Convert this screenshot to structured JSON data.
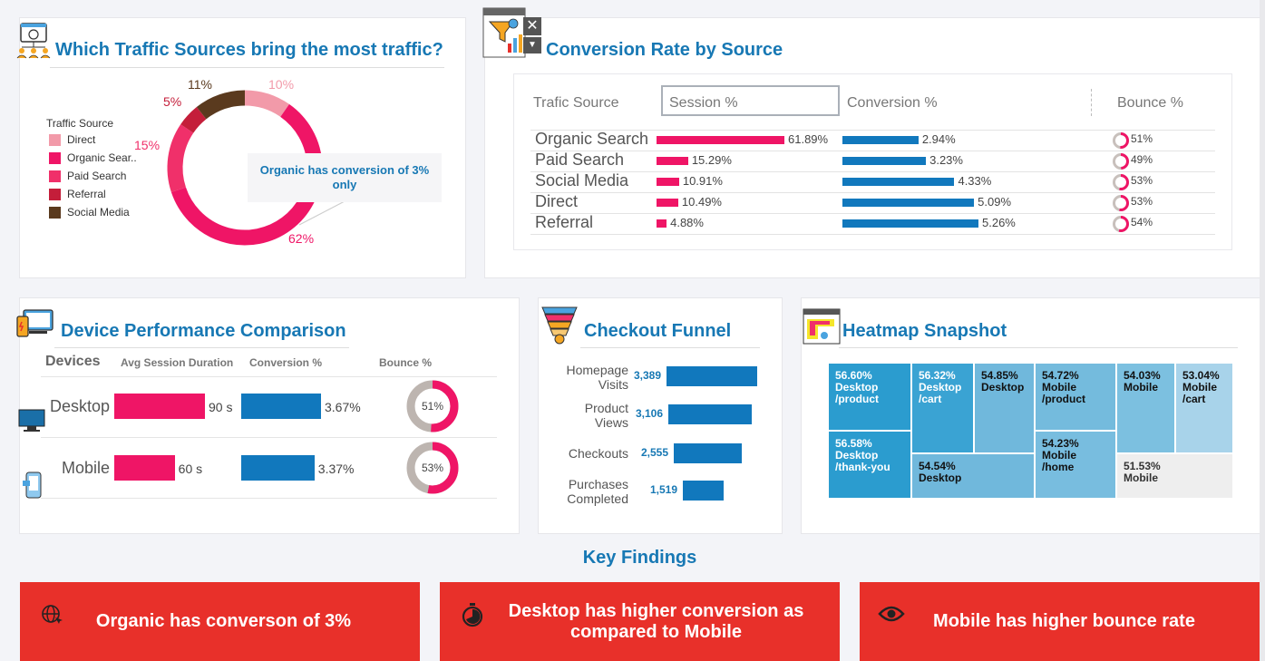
{
  "colors": {
    "direct": "#f29aa9",
    "organic": "#ef1566",
    "paid": "#f0306a",
    "referral": "#c41e3a",
    "social": "#5a3a1e",
    "blue": "#1178bd",
    "title": "#1778b4",
    "red": "#e8302a"
  },
  "traffic": {
    "title": "Which Traffic Sources bring the most traffic?",
    "legend_title": "Traffic Source",
    "legend": [
      "Direct",
      "Organic Sear..",
      "Paid Search",
      "Referral",
      "Social Media"
    ],
    "callout": "Organic has conversion of 3% only",
    "labels": {
      "social": "11%",
      "direct": "10%",
      "referral": "5%",
      "paid": "15%",
      "organic": "62%"
    }
  },
  "chart_data": [
    {
      "type": "pie",
      "title": "Which Traffic Sources bring the most traffic?",
      "legend_title": "Traffic Source",
      "categories": [
        "Direct",
        "Organic Search",
        "Paid Search",
        "Referral",
        "Social Media"
      ],
      "values": [
        10,
        62,
        15,
        5,
        11
      ]
    },
    {
      "type": "bar",
      "title": "Conversion Rate by Source",
      "categories": [
        "Organic Search",
        "Paid Search",
        "Social Media",
        "Direct",
        "Referral"
      ],
      "series": [
        {
          "name": "Session %",
          "values": [
            61.89,
            15.29,
            10.91,
            10.49,
            4.88
          ]
        },
        {
          "name": "Conversion %",
          "values": [
            2.94,
            3.23,
            4.33,
            5.09,
            5.26
          ]
        },
        {
          "name": "Bounce %",
          "values": [
            51,
            49,
            53,
            53,
            54
          ]
        }
      ]
    },
    {
      "type": "bar",
      "title": "Device Performance Comparison",
      "categories": [
        "Desktop",
        "Mobile"
      ],
      "series": [
        {
          "name": "Avg Session Duration",
          "values": [
            90,
            60
          ]
        },
        {
          "name": "Conversion %",
          "values": [
            3.67,
            3.37
          ]
        },
        {
          "name": "Bounce %",
          "values": [
            51,
            53
          ]
        }
      ]
    },
    {
      "type": "bar",
      "title": "Checkout Funnel",
      "categories": [
        "Homepage Visits",
        "Product Views",
        "Checkouts",
        "Purchases Completed"
      ],
      "values": [
        3389,
        3106,
        2555,
        1519
      ]
    },
    {
      "type": "heatmap",
      "title": "Heatmap Snapshot",
      "categories": [
        "Desktop /product",
        "Desktop /thank-you",
        "Desktop /cart",
        "Desktop",
        "Desktop",
        "Mobile /product",
        "Mobile /home",
        "Mobile",
        "Mobile",
        "Mobile /cart"
      ],
      "values": [
        56.6,
        56.58,
        56.32,
        54.54,
        54.85,
        54.72,
        54.23,
        54.03,
        51.53,
        53.04
      ]
    }
  ],
  "conversion": {
    "title": "Conversion Rate by Source",
    "headers": [
      "Trafic Source",
      "Session %",
      "Conversion %",
      "Bounce %"
    ],
    "rows": [
      {
        "source": "Organic Search",
        "session": 61.89,
        "session_label": "61.89%",
        "conv": 2.94,
        "conv_label": "2.94%",
        "bounce": 51,
        "bounce_label": "51%"
      },
      {
        "source": "Paid Search",
        "session": 15.29,
        "session_label": "15.29%",
        "conv": 3.23,
        "conv_label": "3.23%",
        "bounce": 49,
        "bounce_label": "49%"
      },
      {
        "source": "Social Media",
        "session": 10.91,
        "session_label": "10.91%",
        "conv": 4.33,
        "conv_label": "4.33%",
        "bounce": 53,
        "bounce_label": "53%"
      },
      {
        "source": "Direct",
        "session": 10.49,
        "session_label": "10.49%",
        "conv": 5.09,
        "conv_label": "5.09%",
        "bounce": 53,
        "bounce_label": "53%"
      },
      {
        "source": "Referral",
        "session": 4.88,
        "session_label": "4.88%",
        "conv": 5.26,
        "conv_label": "5.26%",
        "bounce": 54,
        "bounce_label": "54%"
      }
    ]
  },
  "device": {
    "title": "Device Performance Comparison",
    "headers": [
      "Devices",
      "Avg Session Duration",
      "Conversion %",
      "Bounce %"
    ],
    "rows": [
      {
        "device": "Desktop",
        "dur": 90,
        "dur_label": "90 s",
        "conv": 3.67,
        "conv_label": "3.67%",
        "bounce": 51,
        "bounce_label": "51%"
      },
      {
        "device": "Mobile",
        "dur": 60,
        "dur_label": "60 s",
        "conv": 3.37,
        "conv_label": "3.37%",
        "bounce": 53,
        "bounce_label": "53%"
      }
    ]
  },
  "funnel": {
    "title": "Checkout Funnel",
    "stages": [
      {
        "label": "Homepage Visits",
        "lines": [
          "Homepage",
          "Visits"
        ],
        "value": 3389,
        "value_label": "3,389"
      },
      {
        "label": "Product Views",
        "lines": [
          "Product",
          "Views"
        ],
        "value": 3106,
        "value_label": "3,106"
      },
      {
        "label": "Checkouts",
        "lines": [
          "Checkouts"
        ],
        "value": 2555,
        "value_label": "2,555"
      },
      {
        "label": "Purchases Completed",
        "lines": [
          "Purchases",
          "Completed"
        ],
        "value": 1519,
        "value_label": "1,519"
      }
    ]
  },
  "heatmap": {
    "title": "Heatmap Snapshot",
    "cells": [
      {
        "pct": "56.60%",
        "l1": "Desktop",
        "l2": "/product"
      },
      {
        "pct": "56.58%",
        "l1": "Desktop",
        "l2": "/thank-you"
      },
      {
        "pct": "56.32%",
        "l1": "Desktop",
        "l2": "/cart"
      },
      {
        "pct": "54.54%",
        "l1": "Desktop",
        "l2": ""
      },
      {
        "pct": "54.85%",
        "l1": "Desktop",
        "l2": ""
      },
      {
        "pct": "54.72%",
        "l1": "Mobile",
        "l2": "/product"
      },
      {
        "pct": "54.23%",
        "l1": "Mobile",
        "l2": "/home"
      },
      {
        "pct": "54.03%",
        "l1": "Mobile",
        "l2": ""
      },
      {
        "pct": "51.53%",
        "l1": "Mobile",
        "l2": ""
      },
      {
        "pct": "53.04%",
        "l1": "Mobile",
        "l2": "/cart"
      }
    ]
  },
  "findings": {
    "title": "Key Findings",
    "items": [
      {
        "icon": "globe-icon",
        "text": "Organic has converson of 3%"
      },
      {
        "icon": "stopwatch-icon",
        "text": "Desktop has higher conversion as compared to Mobile"
      },
      {
        "icon": "eye-icon",
        "text": "Mobile has higher bounce rate"
      }
    ]
  }
}
